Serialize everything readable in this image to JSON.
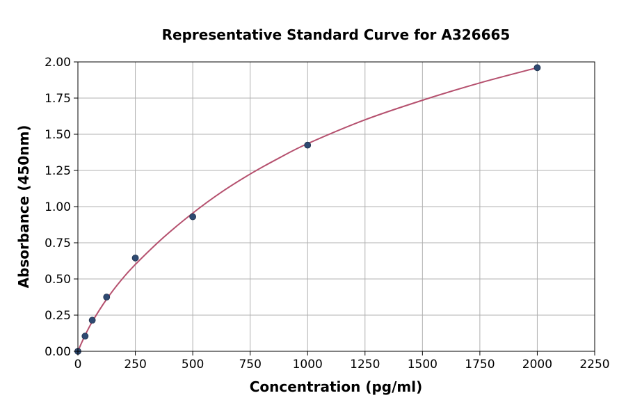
{
  "chart_data": {
    "type": "scatter",
    "title": "Representative Standard Curve for A326665",
    "xlabel": "Concentration (pg/ml)",
    "ylabel": "Absorbance (450nm)",
    "xlim": [
      0,
      2250
    ],
    "ylim": [
      0,
      2.0
    ],
    "x_ticks": [
      0,
      250,
      500,
      750,
      1000,
      1250,
      1500,
      1750,
      2000,
      2250
    ],
    "x_tick_labels": [
      "0",
      "250",
      "500",
      "750",
      "1000",
      "1250",
      "1500",
      "1750",
      "2000",
      "2250"
    ],
    "y_ticks": [
      0,
      0.25,
      0.5,
      0.75,
      1.0,
      1.25,
      1.5,
      1.75,
      2.0
    ],
    "y_tick_labels": [
      "0.00",
      "0.25",
      "0.50",
      "0.75",
      "1.00",
      "1.25",
      "1.50",
      "1.75",
      "2.00"
    ],
    "grid": true,
    "series": [
      {
        "type": "scatter",
        "color": "#2e4a72",
        "x": [
          0,
          31.25,
          62.5,
          125,
          250,
          500,
          1000,
          2000
        ],
        "y": [
          0.0,
          0.105,
          0.215,
          0.375,
          0.645,
          0.93,
          1.425,
          1.96
        ]
      },
      {
        "type": "line",
        "color": "#b5506e",
        "fit": "power-ish smooth curve through points",
        "x": [
          0,
          15,
          31.25,
          62.5,
          125,
          187.5,
          250,
          375,
          500,
          625,
          750,
          875,
          1000,
          1250,
          1500,
          1750,
          2000
        ],
        "y": [
          0.0,
          0.055,
          0.11,
          0.205,
          0.36,
          0.49,
          0.6,
          0.79,
          0.955,
          1.1,
          1.225,
          1.335,
          1.435,
          1.6,
          1.735,
          1.855,
          1.96
        ]
      }
    ]
  }
}
